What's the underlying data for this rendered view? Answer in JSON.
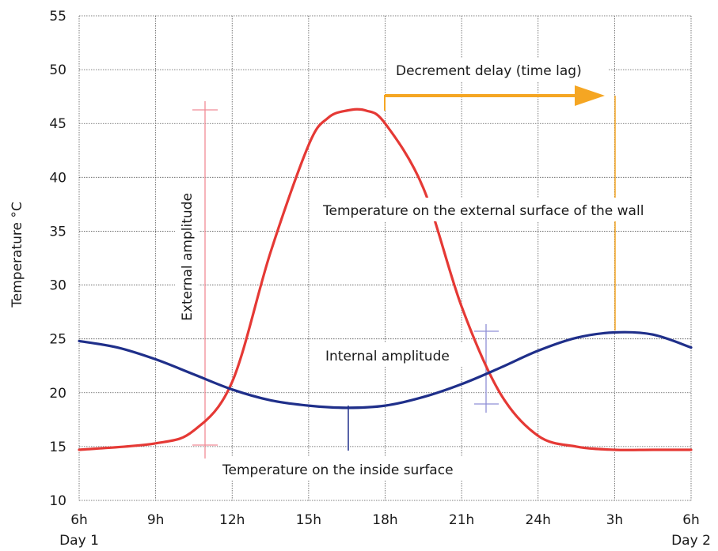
{
  "chart_data": {
    "type": "line",
    "title": "",
    "xlabel": "",
    "ylabel": "Temperature °C",
    "ylim": [
      10,
      55
    ],
    "yticks": [
      "10",
      "15",
      "20",
      "25",
      "30",
      "35",
      "40",
      "45",
      "50",
      "55"
    ],
    "xticks": [
      "6h",
      "9h",
      "12h",
      "15h",
      "18h",
      "21h",
      "24h",
      "3h",
      "6h"
    ],
    "x_day_labels": {
      "start": "Day 1",
      "end": "Day 2"
    },
    "grid": true,
    "series": [
      {
        "color": "#e53935",
        "x": [
          0,
          1,
          1.5,
          2,
          2.5,
          3,
          3.25,
          3.5,
          3.75,
          4,
          4.5,
          5,
          5.5,
          6,
          6.5,
          7,
          7.5,
          8
        ],
        "y": [
          14.7,
          15.3,
          16.5,
          21,
          33,
          43,
          45.5,
          46.2,
          46.2,
          45,
          39,
          28,
          20,
          16,
          15,
          14.7,
          14.7,
          14.7
        ]
      },
      {
        "color": "#1f2f8a",
        "x": [
          0,
          0.5,
          1,
          1.5,
          2,
          2.5,
          3,
          3.5,
          4,
          4.5,
          5,
          5.5,
          6,
          6.5,
          7,
          7.5,
          8
        ],
        "y": [
          24.8,
          24.2,
          23.1,
          21.7,
          20.3,
          19.3,
          18.8,
          18.6,
          18.8,
          19.6,
          20.8,
          22.3,
          23.9,
          25.1,
          25.6,
          25.4,
          24.2
        ]
      }
    ],
    "annotations": {
      "external_amplitude": "External amplitude",
      "internal_amplitude": "Internal amplitude",
      "external_surface": "Temperature on the external surface of the wall",
      "inside_surface": "Temperature on the inside surface",
      "decrement_delay": "Decrement delay (time lag)"
    },
    "colors": {
      "external": "#e53935",
      "internal": "#1f2f8a",
      "ext_amp_marker": "#f08c96",
      "int_amp_marker": "#8f8fd6",
      "delay_arrow": "#f5a623",
      "grid": "#555555"
    }
  }
}
